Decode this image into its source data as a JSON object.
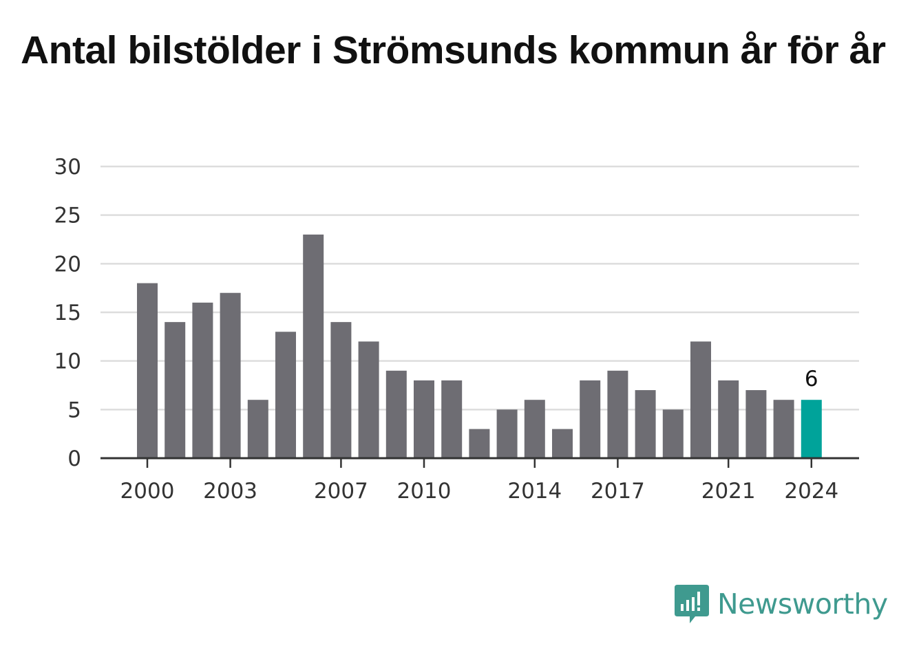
{
  "chart_data": {
    "type": "bar",
    "title": "Antal bilstölder i Strömsunds kommun år för år",
    "categories": [
      "2000",
      "2001",
      "2002",
      "2003",
      "2004",
      "2005",
      "2006",
      "2007",
      "2008",
      "2009",
      "2010",
      "2011",
      "2012",
      "2013",
      "2014",
      "2015",
      "2016",
      "2017",
      "2018",
      "2019",
      "2020",
      "2021",
      "2022",
      "2023",
      "2024"
    ],
    "values": [
      18,
      14,
      16,
      17,
      6,
      13,
      23,
      14,
      12,
      9,
      8,
      8,
      3,
      5,
      6,
      3,
      8,
      9,
      7,
      5,
      12,
      8,
      7,
      6,
      6
    ],
    "x_tick_labels": [
      "2000",
      "2003",
      "2007",
      "2010",
      "2014",
      "2017",
      "2021",
      "2024"
    ],
    "y_ticks": [
      0,
      5,
      10,
      15,
      20,
      25,
      30
    ],
    "ylim": [
      0,
      30
    ],
    "grid": true,
    "highlight": {
      "category": "2024",
      "label": "6"
    },
    "colors": {
      "bar": "#6e6d73",
      "highlight": "#00a39a",
      "grid": "#dddddd",
      "axis": "#333333"
    }
  },
  "brand": {
    "name": "Newsworthy",
    "icon": "newsworthy-logo-icon"
  }
}
